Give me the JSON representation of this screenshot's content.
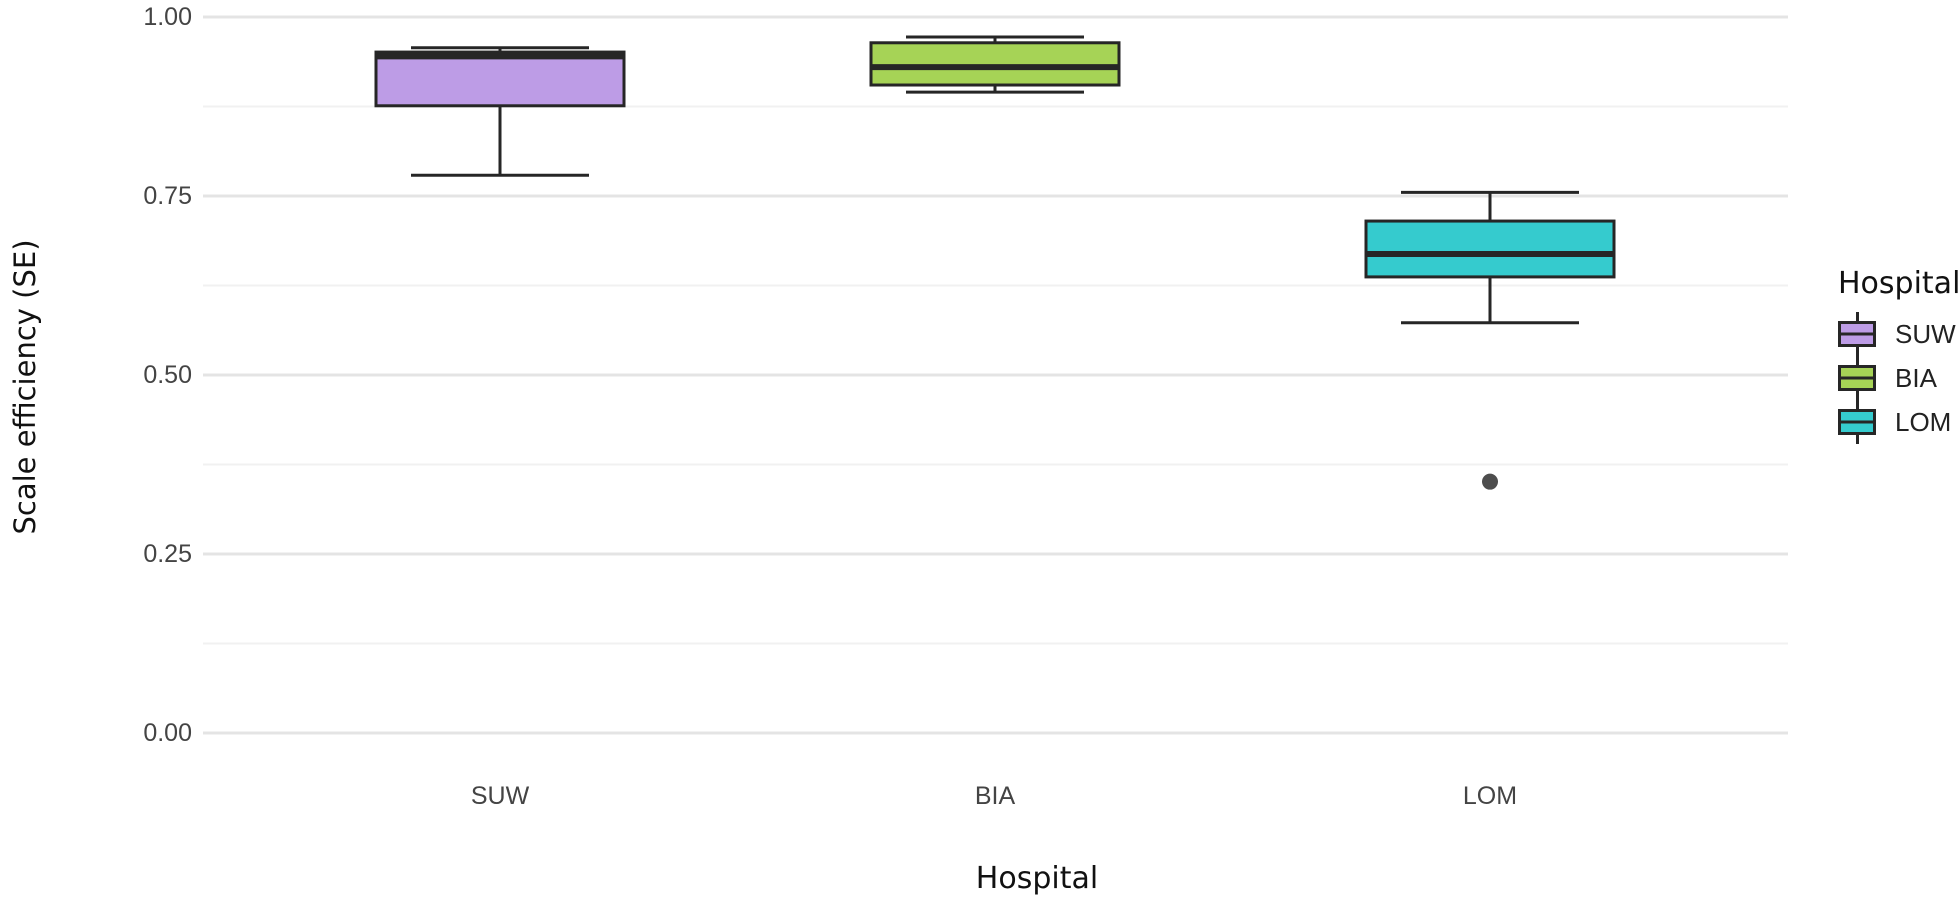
{
  "chart_data": {
    "type": "boxplot",
    "title": "",
    "xlabel": "Hospital",
    "ylabel": "Scale efficiency (SE)",
    "ylim": [
      0.0,
      1.0
    ],
    "grid": "horizontal major+minor, no axis lines, no tick marks",
    "legend_position": "right",
    "y_axis": {
      "ticks": [
        1.0,
        0.75,
        0.5,
        0.25,
        0.0
      ],
      "tick_labels": [
        "1.00",
        "0.75",
        "0.50",
        "0.25",
        "0.00"
      ],
      "minor_ticks": [
        0.875,
        0.625,
        0.375,
        0.125
      ]
    },
    "categories": [
      "SUW",
      "BIA",
      "LOM"
    ],
    "legend": {
      "title": "Hospital",
      "labels": [
        "SUW",
        "BIA",
        "LOM"
      ]
    },
    "series": [
      {
        "name": "SUW",
        "color": "#BD9CE6",
        "whisker_low": 0.779,
        "q1": 0.876,
        "median": 0.945,
        "q3": 0.951,
        "whisker_high": 0.957,
        "outliers": []
      },
      {
        "name": "BIA",
        "color": "#A6D356",
        "whisker_low": 0.895,
        "q1": 0.905,
        "median": 0.93,
        "q3": 0.964,
        "whisker_high": 0.972,
        "outliers": []
      },
      {
        "name": "LOM",
        "color": "#35CBCE",
        "whisker_low": 0.573,
        "q1": 0.637,
        "median": 0.669,
        "q3": 0.715,
        "whisker_high": 0.755,
        "outliers": [
          0.351
        ]
      }
    ],
    "style": {
      "stroke_color": "#262626",
      "outlier_color": "#4D4D4D",
      "grid_major_color": "#E4E4E4",
      "grid_minor_color": "#F1F1F1",
      "background": "#FFFFFF"
    }
  }
}
